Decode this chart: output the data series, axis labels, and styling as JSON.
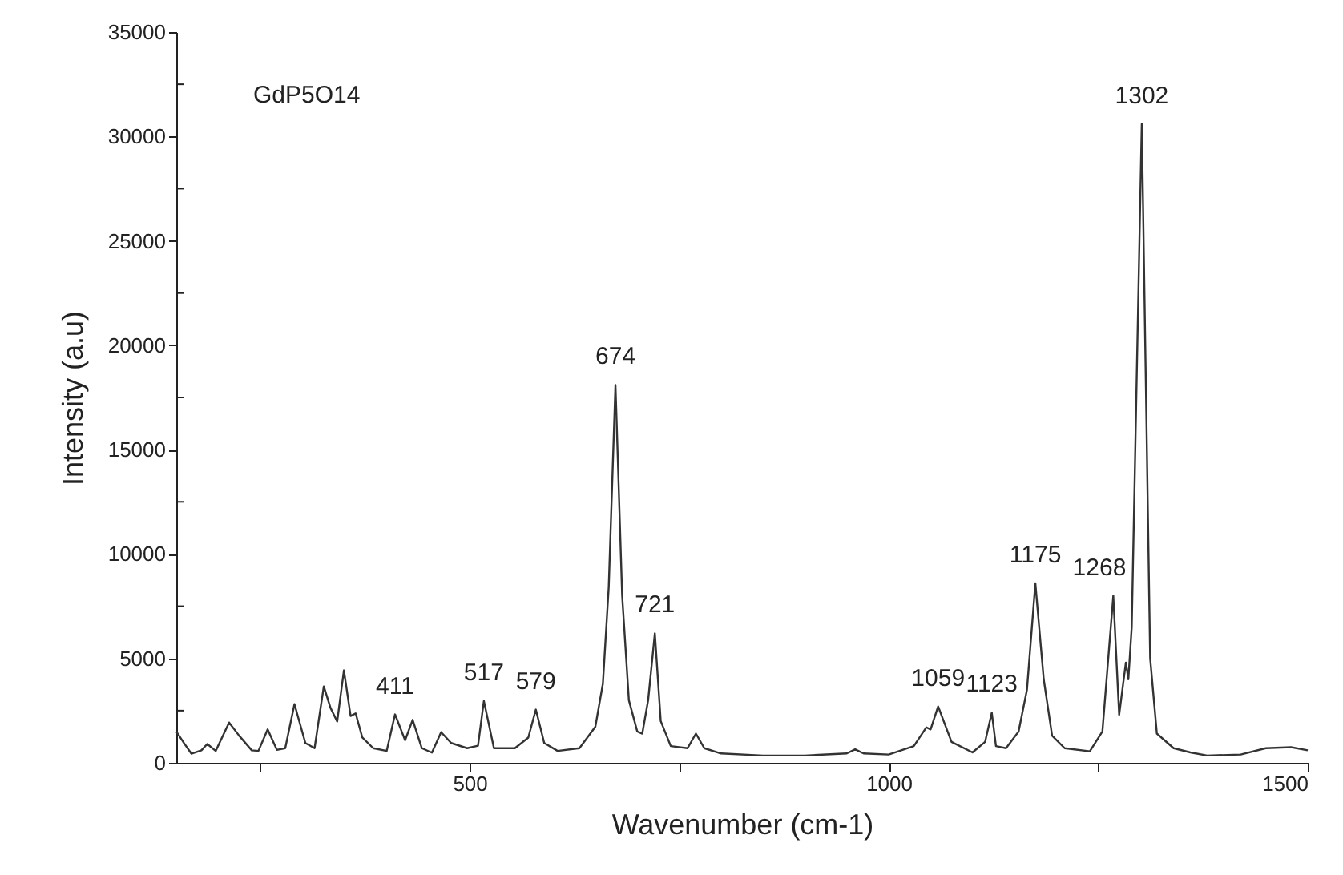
{
  "chart_data": {
    "type": "line",
    "xlabel": "Wavenumber (cm-1)",
    "ylabel": "Intensity (a.u)",
    "xlim": [
      150,
      1500
    ],
    "xticks": [
      {
        "value": 250,
        "label": null
      },
      500,
      {
        "value": 750,
        "label": null
      },
      1000,
      {
        "value": 1250,
        "label": null
      },
      1500
    ],
    "ylim": [
      0,
      35000
    ],
    "yticks": [
      0,
      {
        "value": 2500,
        "label": null
      },
      5000,
      {
        "value": 7500,
        "label": null
      },
      10000,
      {
        "value": 12500,
        "label": null
      },
      15000,
      {
        "value": 17500,
        "label": null
      },
      20000,
      {
        "value": 22500,
        "label": null
      },
      25000,
      {
        "value": 27500,
        "label": null
      },
      30000,
      {
        "value": 32500,
        "label": null
      },
      35000
    ],
    "x": [
      150,
      160,
      168,
      180,
      187,
      197,
      213,
      225,
      240,
      248,
      259,
      270,
      280,
      291,
      304,
      315,
      326,
      334,
      342,
      350,
      358,
      364,
      372,
      385,
      401,
      411,
      423,
      432,
      443,
      455,
      466,
      478,
      497,
      510,
      517,
      529,
      554,
      570,
      579,
      589,
      605,
      631,
      650,
      659,
      666,
      674,
      682,
      690,
      700,
      706,
      713,
      721,
      728,
      740,
      760,
      770,
      780,
      800,
      850,
      900,
      950,
      960,
      970,
      1000,
      1030,
      1045,
      1050,
      1059,
      1075,
      1100,
      1115,
      1123,
      1128,
      1140,
      1155,
      1165,
      1175,
      1185,
      1195,
      1210,
      1240,
      1255,
      1268,
      1275,
      1283,
      1286,
      1290,
      1302,
      1312,
      1320,
      1340,
      1360,
      1380,
      1420,
      1450,
      1480,
      1500
    ],
    "series": [
      {
        "color": "#333333",
        "values": [
          1500,
          900,
          440,
          600,
          900,
          570,
          1930,
          1300,
          600,
          570,
          1600,
          620,
          700,
          2810,
          950,
          700,
          3660,
          2630,
          1980,
          4430,
          2240,
          2370,
          1210,
          700,
          570,
          2320,
          1080,
          2060,
          700,
          490,
          1470,
          950,
          700,
          820,
          2960,
          700,
          700,
          1210,
          2550,
          950,
          570,
          700,
          1730,
          3790,
          8430,
          18100,
          8000,
          3000,
          1500,
          1400,
          3000,
          6200,
          2000,
          800,
          700,
          1400,
          700,
          450,
          350,
          350,
          450,
          650,
          450,
          400,
          800,
          1700,
          1600,
          2700,
          1000,
          500,
          1000,
          2400,
          800,
          700,
          1500,
          3500,
          8600,
          4000,
          1300,
          700,
          550,
          1500,
          8000,
          2300,
          4800,
          4000,
          6500,
          30600,
          5000,
          1400,
          700,
          500,
          350,
          400,
          700,
          750,
          600
        ]
      }
    ],
    "annotations": [
      "GdP5O14",
      {
        "text": "411",
        "x": 411,
        "y": 2320
      },
      {
        "text": "517",
        "x": 517,
        "y": 2960
      },
      {
        "text": "579",
        "x": 579,
        "y": 2550
      },
      {
        "text": "674",
        "x": 674,
        "y": 18100
      },
      {
        "text": "721",
        "x": 721,
        "y": 6200
      },
      {
        "text": "1059",
        "x": 1059,
        "y": 2700
      },
      {
        "text": "1123",
        "x": 1123,
        "y": 2400
      },
      {
        "text": "1175",
        "x": 1175,
        "y": 8600
      },
      {
        "text": "1268",
        "x": 1268,
        "y": 8000
      },
      {
        "text": "1302",
        "x": 1302,
        "y": 30600
      }
    ]
  }
}
